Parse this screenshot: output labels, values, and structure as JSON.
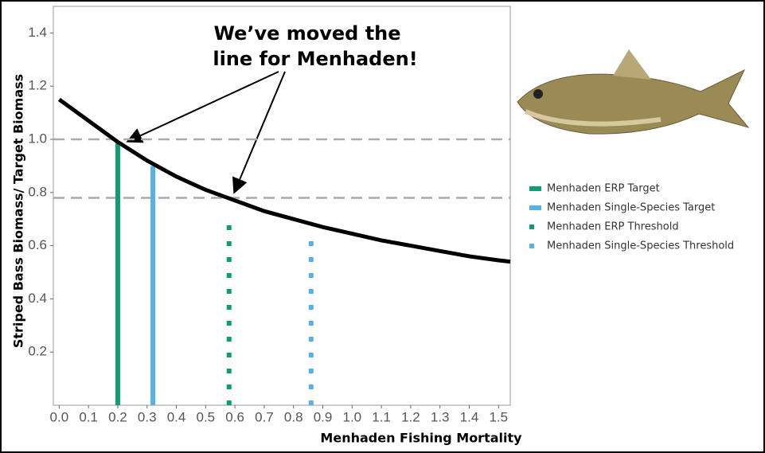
{
  "chart_data": {
    "type": "line",
    "annotation": [
      "We’ve moved the",
      "line for Menhaden!"
    ],
    "xlabel": "Menhaden Fishing Mortality",
    "ylabel": "Striped Bass Biomass/ Target Biomass",
    "xlim": [
      -0.02,
      1.54
    ],
    "ylim": [
      0,
      1.5
    ],
    "xticks": [
      {
        "value": 0,
        "label": "0.0"
      },
      0.1,
      0.2,
      0.3,
      0.4,
      0.5,
      0.6,
      0.7,
      0.8,
      0.9,
      {
        "value": 1,
        "label": "1.0"
      },
      1.1,
      1.2,
      1.3,
      1.4,
      1.5
    ],
    "yticks": [
      0.2,
      0.4,
      0.6,
      0.8,
      {
        "value": 1,
        "label": "1.0"
      },
      1.2,
      1.4
    ],
    "curve": {
      "color": "#000000",
      "x": [
        0,
        0.1,
        0.2,
        0.3,
        0.4,
        0.5,
        0.6,
        0.7,
        0.8,
        0.9,
        1.0,
        1.1,
        1.2,
        1.3,
        1.4,
        1.5,
        1.54
      ],
      "values": [
        1.15,
        1.07,
        0.99,
        0.92,
        0.86,
        0.81,
        0.77,
        0.73,
        0.7,
        0.67,
        0.645,
        0.62,
        0.6,
        0.58,
        0.56,
        0.545,
        0.54
      ]
    },
    "hlines": [
      1.0,
      0.78
    ],
    "series": [
      {
        "name": "Menhaden ERP Target",
        "color": "#139b76",
        "style": "solid",
        "x": 0.2,
        "value": 0.99
      },
      {
        "name": "Menhaden Single-Species Target",
        "color": "#56b2e6",
        "style": "solid",
        "x": 0.32,
        "value": 0.9
      },
      {
        "name": "Menhaden ERP Threshold",
        "color": "#139b76",
        "style": "dotted",
        "x": 0.58,
        "value": 0.71
      },
      {
        "name": "Menhaden Single-Species Threshold",
        "color": "#56b2e6",
        "style": "dotted",
        "x": 0.86,
        "value": 0.63
      }
    ]
  }
}
